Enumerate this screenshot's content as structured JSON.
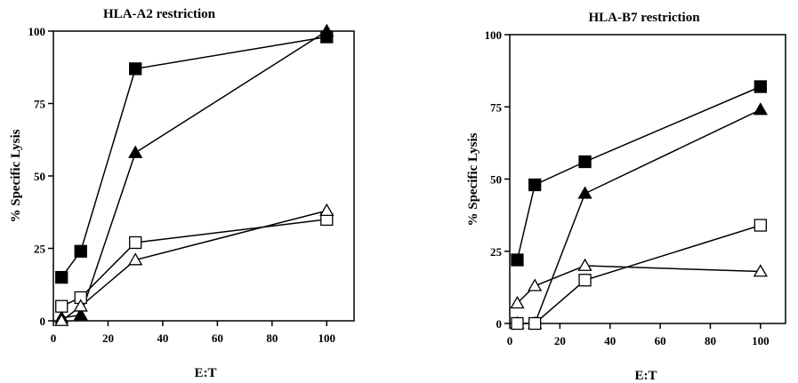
{
  "chart_data": [
    {
      "type": "line",
      "title": "HLA-A2 restriction",
      "xlabel": "E:T",
      "ylabel": "% Specific Lysis",
      "xlim": [
        0,
        110
      ],
      "ylim": [
        0,
        100
      ],
      "xticks": [
        "0",
        "20",
        "40",
        "60",
        "80",
        "100"
      ],
      "yticks": [
        "0",
        "25",
        "50",
        "75",
        "100"
      ],
      "grid": false,
      "legend": "none",
      "series": [
        {
          "marker": "square-filled",
          "x": [
            3,
            10,
            30,
            100
          ],
          "y": [
            15,
            24,
            87,
            98
          ]
        },
        {
          "marker": "triangle-filled",
          "x": [
            3,
            10,
            30,
            100
          ],
          "y": [
            1,
            2,
            58,
            100
          ]
        },
        {
          "marker": "square-open",
          "x": [
            3,
            10,
            30,
            100
          ],
          "y": [
            5,
            8,
            27,
            35
          ]
        },
        {
          "marker": "triangle-open",
          "x": [
            3,
            10,
            30,
            100
          ],
          "y": [
            0,
            5,
            21,
            38
          ]
        }
      ]
    },
    {
      "type": "line",
      "title": "HLA-B7 restriction",
      "xlabel": "E:T",
      "ylabel": "% Specific Lysis",
      "xlim": [
        0,
        110
      ],
      "ylim": [
        0,
        100
      ],
      "xticks": [
        "0",
        "20",
        "40",
        "60",
        "80",
        "100"
      ],
      "yticks": [
        "0",
        "25",
        "50",
        "75",
        "100"
      ],
      "grid": false,
      "legend": "none",
      "series": [
        {
          "marker": "square-filled",
          "x": [
            3,
            10,
            30,
            100
          ],
          "y": [
            22,
            48,
            56,
            82
          ]
        },
        {
          "marker": "triangle-filled",
          "x": [
            3,
            10,
            30,
            100
          ],
          "y": [
            0,
            0,
            45,
            74
          ]
        },
        {
          "marker": "square-open",
          "x": [
            3,
            10,
            30,
            100
          ],
          "y": [
            0,
            0,
            15,
            34
          ]
        },
        {
          "marker": "triangle-open",
          "x": [
            3,
            10,
            30,
            100
          ],
          "y": [
            7,
            13,
            20,
            18
          ]
        }
      ]
    }
  ]
}
